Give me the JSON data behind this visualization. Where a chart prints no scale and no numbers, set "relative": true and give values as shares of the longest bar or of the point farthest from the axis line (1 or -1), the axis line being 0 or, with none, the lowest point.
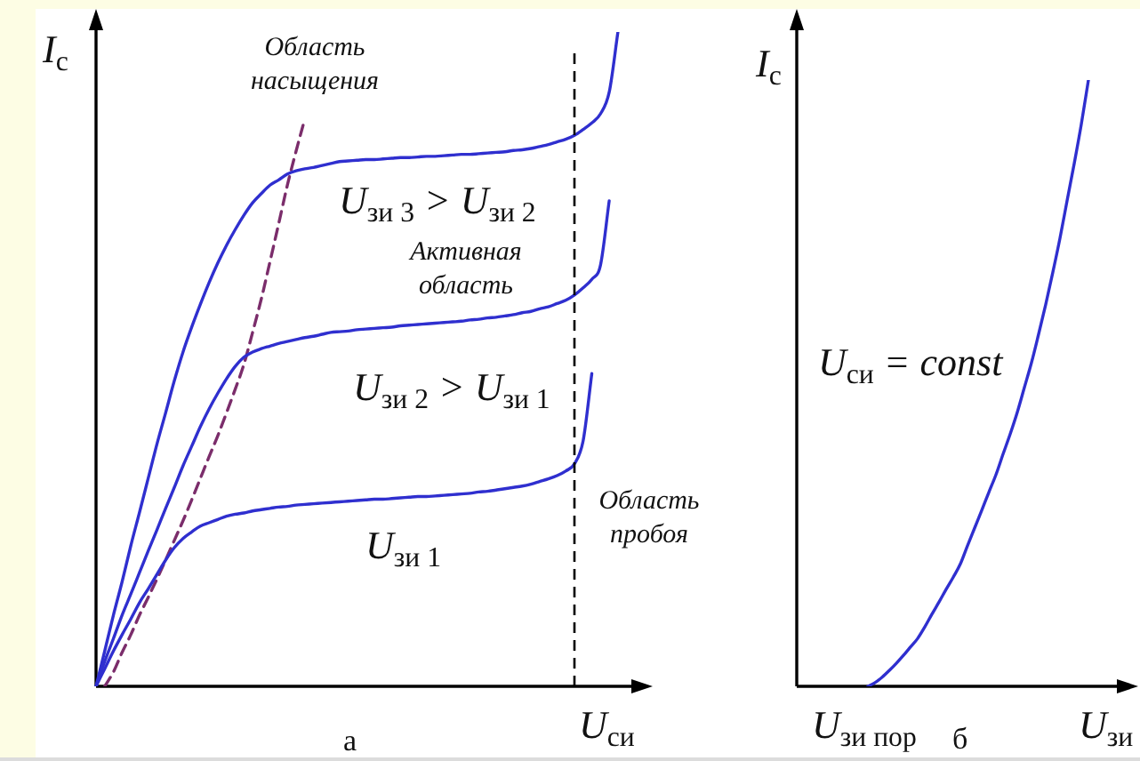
{
  "chart_data": [
    {
      "type": "line",
      "relative": true,
      "marker": "none",
      "xlabel": "U$_{си}$",
      "ylabel": "I$_{с}$",
      "categories": [
        null,
        null,
        null,
        null,
        null,
        null,
        null,
        null,
        null,
        null,
        null,
        null,
        null,
        null,
        null,
        null,
        null,
        null,
        null,
        null,
        null,
        null,
        null,
        null,
        null,
        null,
        null,
        null,
        null,
        null,
        null,
        null,
        null,
        null,
        null,
        null,
        null,
        null,
        null,
        null,
        null,
        null,
        null,
        null,
        null,
        null,
        null,
        null,
        null,
        null,
        null,
        null,
        null,
        null,
        null,
        null,
        null,
        null,
        null,
        null,
        null,
        null,
        null,
        null,
        null
      ],
      "series": [
        {
          "name": "U$_{зи 1}$",
          "color": "#2f2fcf",
          "values": [
            0,
            0.027,
            0.054,
            0.079,
            0.103,
            0.128,
            0.149,
            0.171,
            0.193,
            0.212,
            0.226,
            0.236,
            0.245,
            0.25,
            0.255,
            0.26,
            0.263,
            0.265,
            0.268,
            0.27,
            0.272,
            0.274,
            0.275,
            0.277,
            0.278,
            0.279,
            0.28,
            0.281,
            0.282,
            0.283,
            0.284,
            0.285,
            0.286,
            0.286,
            0.287,
            0.288,
            0.289,
            0.29,
            0.29,
            0.291,
            0.292,
            0.293,
            0.294,
            0.295,
            0.297,
            0.298,
            0.3,
            0.302,
            0.304,
            0.306,
            0.309,
            0.313,
            0.317,
            0.322,
            0.329,
            0.34,
            0.375,
            0.478,
            null,
            null,
            null,
            null,
            null,
            null,
            null
          ]
        },
        {
          "name": "U$_{зи 2}$ > U$_{зи 1}$",
          "color": "#2f2fcf",
          "values": [
            0,
            0.038,
            0.073,
            0.109,
            0.141,
            0.174,
            0.207,
            0.239,
            0.272,
            0.304,
            0.337,
            0.367,
            0.397,
            0.424,
            0.448,
            0.47,
            0.489,
            0.503,
            0.511,
            0.516,
            0.52,
            0.524,
            0.527,
            0.53,
            0.533,
            0.535,
            0.538,
            0.541,
            0.542,
            0.543,
            0.545,
            0.546,
            0.547,
            0.548,
            0.549,
            0.551,
            0.552,
            0.553,
            0.554,
            0.555,
            0.556,
            0.557,
            0.558,
            0.56,
            0.561,
            0.563,
            0.564,
            0.566,
            0.568,
            0.571,
            0.573,
            0.577,
            0.58,
            0.585,
            0.59,
            0.598,
            0.609,
            0.622,
            0.644,
            0.742,
            null,
            null,
            null,
            null,
            null
          ]
        },
        {
          "name": "U$_{зи 3}$ > U$_{зи 2}$",
          "color": "#2f2fcf",
          "values": [
            0,
            0.054,
            0.109,
            0.16,
            0.215,
            0.266,
            0.318,
            0.37,
            0.418,
            0.467,
            0.511,
            0.549,
            0.584,
            0.617,
            0.647,
            0.674,
            0.698,
            0.72,
            0.739,
            0.753,
            0.766,
            0.774,
            0.783,
            0.788,
            0.791,
            0.793,
            0.796,
            0.799,
            0.802,
            0.803,
            0.804,
            0.805,
            0.805,
            0.806,
            0.807,
            0.808,
            0.808,
            0.809,
            0.81,
            0.81,
            0.811,
            0.812,
            0.813,
            0.813,
            0.814,
            0.815,
            0.816,
            0.817,
            0.819,
            0.82,
            0.822,
            0.825,
            0.828,
            0.832,
            0.836,
            0.842,
            0.851,
            0.861,
            0.875,
            0.908,
            1,
            null,
            null,
            null,
            null
          ]
        },
        {
          "color": "#7b2d6b",
          "line_style": "dashed",
          "values": [
            null,
            0,
            0.022,
            0.052,
            0.079,
            0.109,
            0.136,
            0.164,
            0.193,
            0.223,
            0.253,
            0.285,
            0.318,
            0.351,
            0.383,
            0.418,
            0.454,
            0.492,
            0.541,
            0.592,
            0.649,
            0.707,
            0.766,
            0.818,
            0.867,
            null,
            null,
            null,
            null,
            null,
            null,
            null,
            null,
            null,
            null,
            null,
            null,
            null,
            null,
            null,
            null,
            null,
            null,
            null,
            null,
            null,
            null,
            null,
            null,
            null,
            null,
            null,
            null,
            null,
            null,
            null,
            null,
            null,
            null,
            null,
            null,
            null,
            null,
            null,
            null
          ]
        }
      ],
      "annotations": [
        "Область насыщения",
        "Активная область",
        "Область пробоя",
        "а"
      ]
    },
    {
      "type": "line",
      "relative": true,
      "marker": "none",
      "xlabel": "U$_{зи}$",
      "ylabel": "I$_{с}$",
      "categories": [
        null,
        null,
        null,
        null,
        null,
        null,
        null,
        null,
        null,
        null,
        null,
        null,
        null,
        null,
        null,
        null,
        null,
        null,
        null,
        null,
        null,
        null,
        null,
        null,
        null,
        null,
        null,
        null,
        null,
        null,
        null,
        null,
        null,
        null,
        null,
        null,
        null,
        null,
        null,
        null,
        null,
        null,
        null,
        null,
        null,
        null,
        null,
        null,
        null
      ],
      "series": [
        {
          "name": "U$_{си}$ = const",
          "color": "#2f2fcf",
          "values": [
            null,
            null,
            null,
            null,
            null,
            null,
            null,
            null,
            null,
            null,
            0,
            0.006,
            0.015,
            0.026,
            0.038,
            0.051,
            0.065,
            0.079,
            0.098,
            0.119,
            0.139,
            0.16,
            0.18,
            0.202,
            0.232,
            0.261,
            0.29,
            0.32,
            0.349,
            0.383,
            0.416,
            0.452,
            0.493,
            0.534,
            0.581,
            0.63,
            0.683,
            0.739,
            0.801,
            0.862,
            0.927,
            1,
            null,
            null,
            null,
            null,
            null,
            null,
            null
          ]
        }
      ],
      "annotations": [
        "U$_{зи пор}$",
        "б"
      ]
    }
  ]
}
